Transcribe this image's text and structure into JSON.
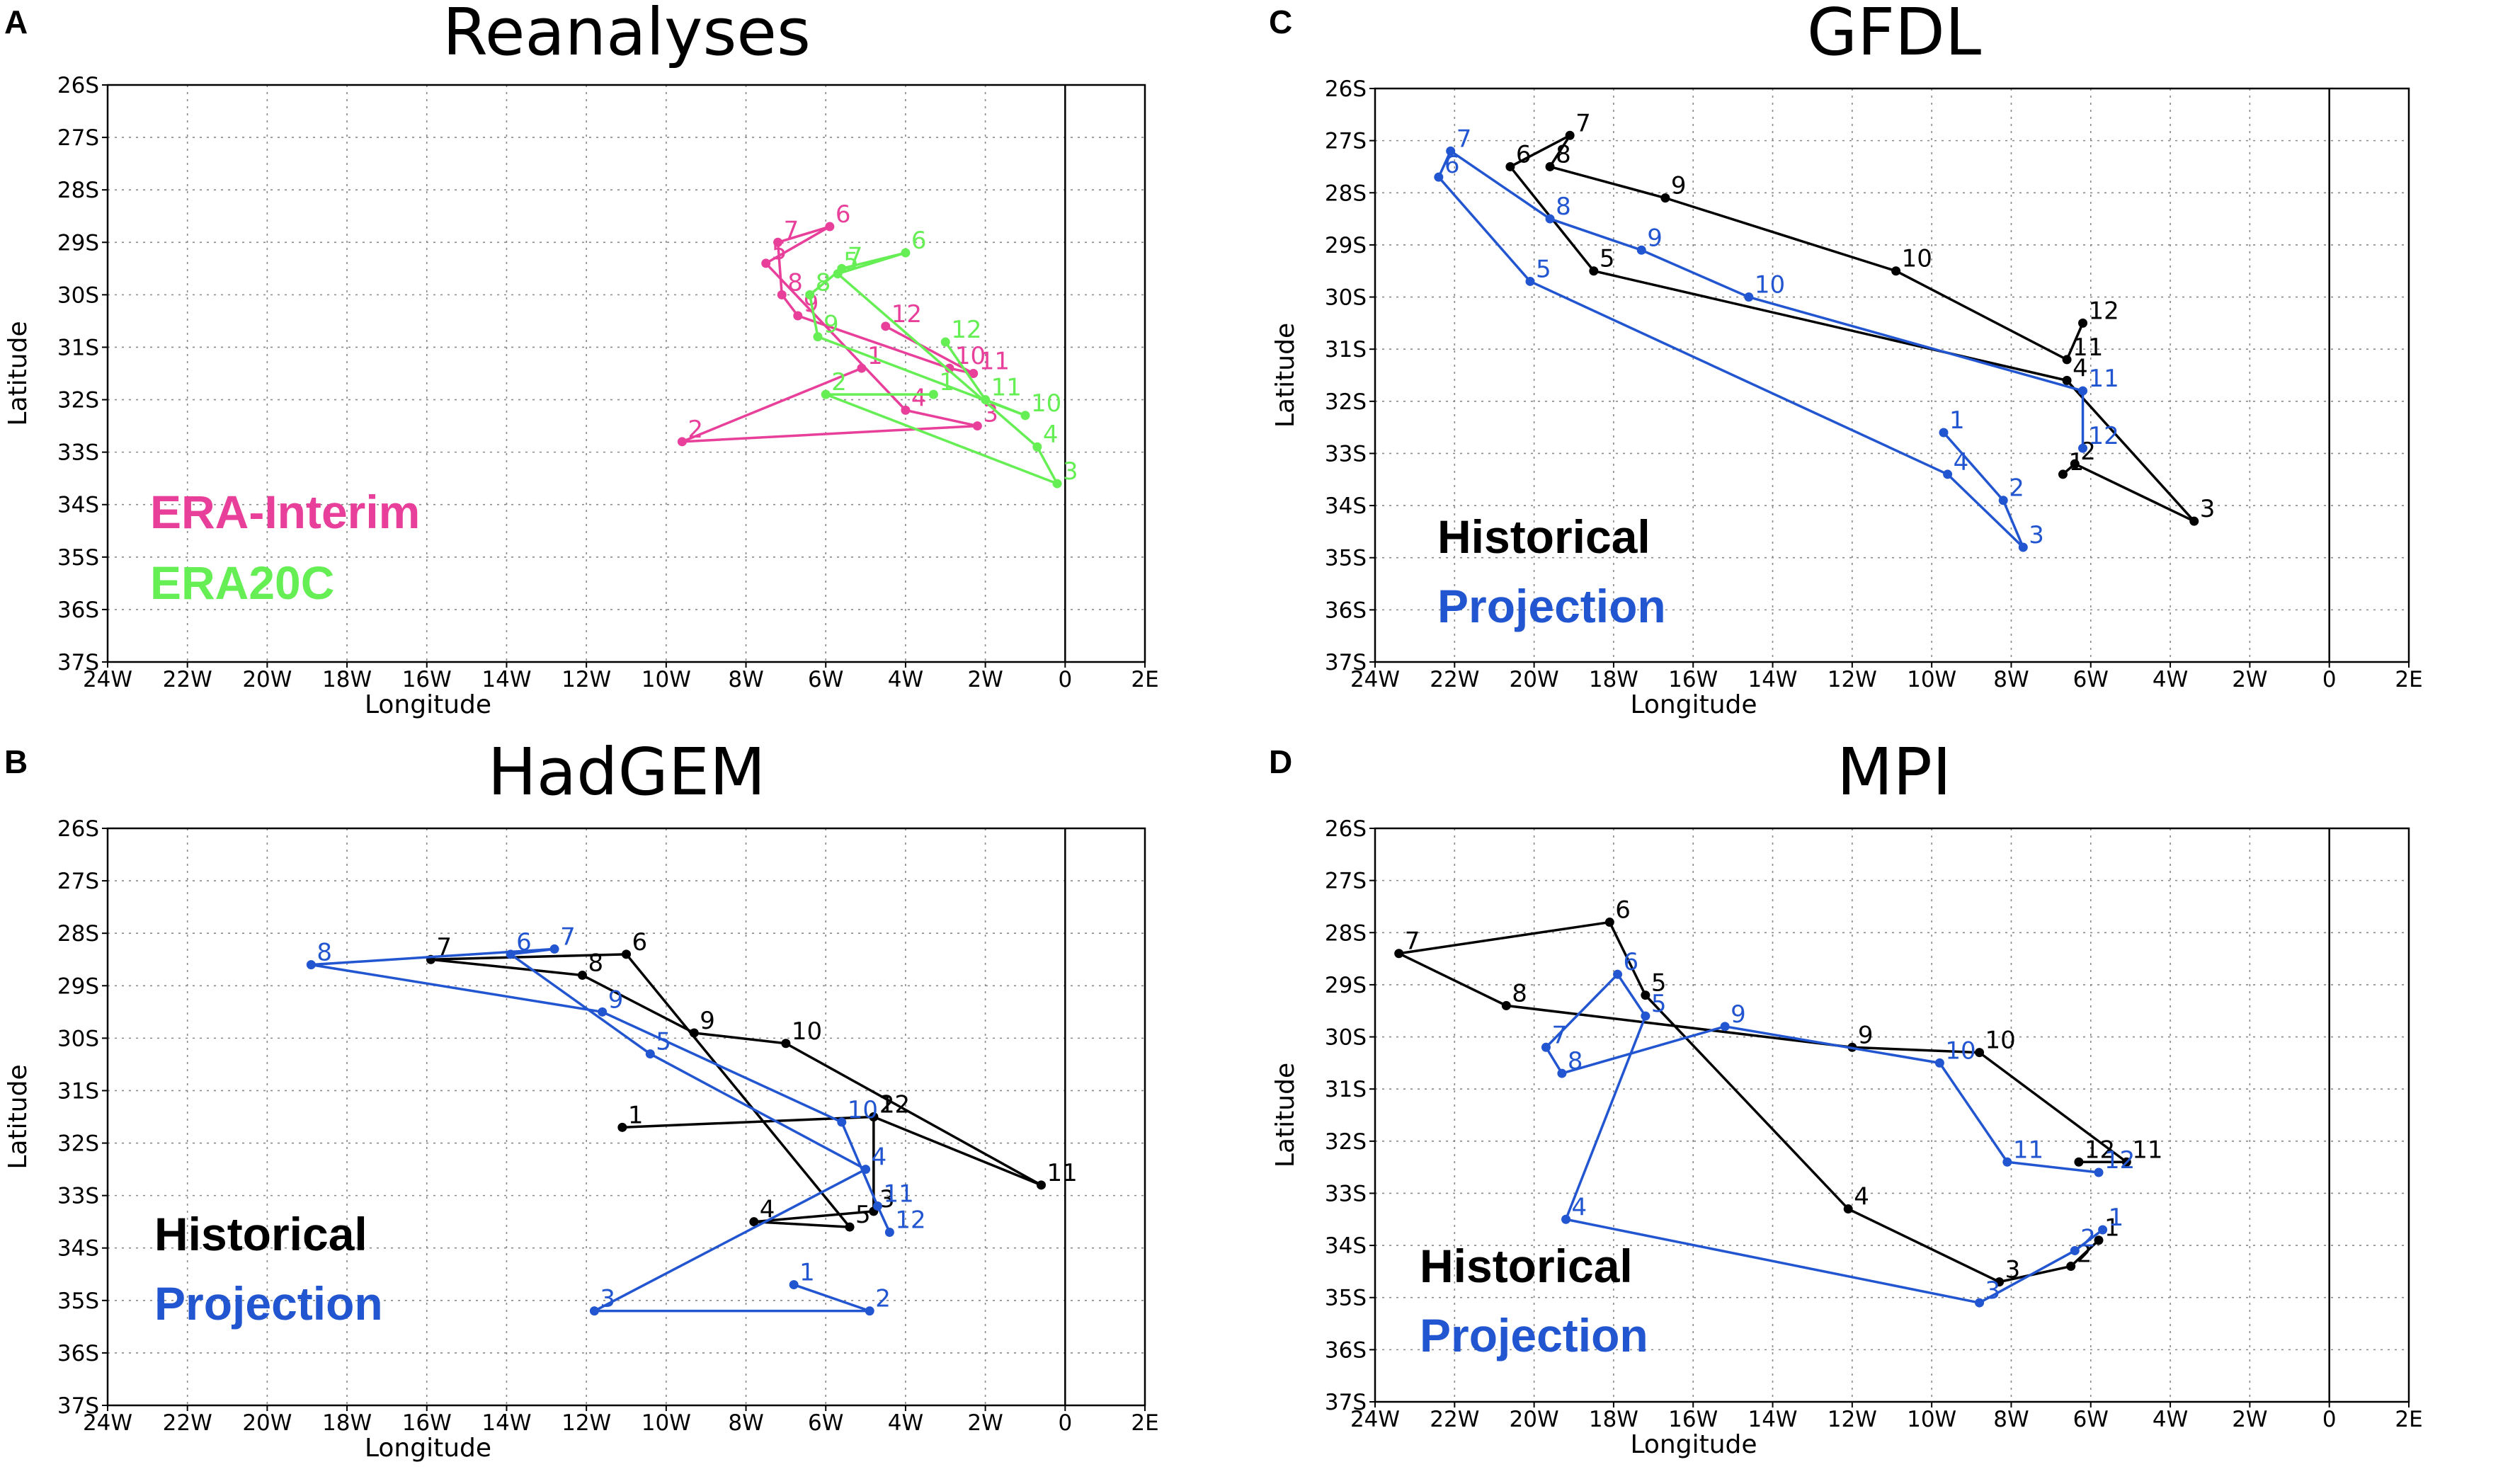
{
  "panels": {
    "A": {
      "letter": "A",
      "title": "Reanalyses",
      "xlabel": "Longitude",
      "ylabel": "Latitude",
      "legend": [
        {
          "text": "ERA-Interim",
          "color": "#e8409a"
        },
        {
          "text": "ERA20C",
          "color": "#66ee55"
        }
      ]
    },
    "B": {
      "letter": "B",
      "title": "HadGEM",
      "xlabel": "Longitude",
      "ylabel": "Latitude",
      "legend": [
        {
          "text": "Historical",
          "color": "#000000"
        },
        {
          "text": "Projection",
          "color": "#2255d0"
        }
      ]
    },
    "C": {
      "letter": "C",
      "title": "GFDL",
      "xlabel": "Longitude",
      "ylabel": "Latitude",
      "legend": [
        {
          "text": "Historical",
          "color": "#000000"
        },
        {
          "text": "Projection",
          "color": "#2255d0"
        }
      ]
    },
    "D": {
      "letter": "D",
      "title": "MPI",
      "xlabel": "Longitude",
      "ylabel": "Latitude",
      "legend": [
        {
          "text": "Historical",
          "color": "#000000"
        },
        {
          "text": "Projection",
          "color": "#2255d0"
        }
      ]
    }
  },
  "chart_data": [
    {
      "panel": "A",
      "type": "line",
      "title": "Reanalyses",
      "xlabel": "Longitude",
      "ylabel": "Latitude",
      "xlim": [
        -24,
        2
      ],
      "ylim": [
        -37,
        -26
      ],
      "xticks": [
        -24,
        -22,
        -20,
        -18,
        -16,
        -14,
        -12,
        -10,
        -8,
        -6,
        -4,
        -2,
        0,
        2
      ],
      "xticklabels": [
        "24W",
        "22W",
        "20W",
        "18W",
        "16W",
        "14W",
        "12W",
        "10W",
        "8W",
        "6W",
        "4W",
        "2W",
        "0",
        "2E"
      ],
      "yticks": [
        -26,
        -27,
        -28,
        -29,
        -30,
        -31,
        -32,
        -33,
        -34,
        -35,
        -36,
        -37
      ],
      "yticklabels": [
        "26S",
        "27S",
        "28S",
        "29S",
        "30S",
        "31S",
        "32S",
        "33S",
        "34S",
        "35S",
        "36S",
        "37S"
      ],
      "grid": true,
      "series": [
        {
          "name": "ERA-Interim",
          "color": "#e8409a",
          "labels": [
            "1",
            "2",
            "3",
            "4",
            "5",
            "6",
            "7",
            "8",
            "9",
            "10",
            "11",
            "12"
          ],
          "x": [
            -5.1,
            -9.6,
            -2.2,
            -4.0,
            -7.5,
            -5.9,
            -7.2,
            -7.1,
            -6.7,
            -2.9,
            -2.3,
            -4.5
          ],
          "y": [
            -31.4,
            -32.8,
            -32.5,
            -32.2,
            -29.4,
            -28.7,
            -29.0,
            -30.0,
            -30.4,
            -31.4,
            -31.5,
            -30.6
          ]
        },
        {
          "name": "ERA20C",
          "color": "#66ee55",
          "labels": [
            "1",
            "2",
            "3",
            "4",
            "5",
            "6",
            "7",
            "8",
            "9",
            "10",
            "11",
            "12"
          ],
          "x": [
            -3.3,
            -6.0,
            -0.2,
            -0.7,
            -5.7,
            -4.0,
            -5.6,
            -6.4,
            -6.2,
            -1.0,
            -2.0,
            -3.0
          ],
          "y": [
            -31.9,
            -31.9,
            -33.6,
            -32.9,
            -29.6,
            -29.2,
            -29.5,
            -30.0,
            -30.8,
            -32.3,
            -32.0,
            -30.9
          ]
        }
      ]
    },
    {
      "panel": "B",
      "type": "line",
      "title": "HadGEM",
      "xlabel": "Longitude",
      "ylabel": "Latitude",
      "xlim": [
        -24,
        2
      ],
      "ylim": [
        -37,
        -26
      ],
      "xticks": [
        -24,
        -22,
        -20,
        -18,
        -16,
        -14,
        -12,
        -10,
        -8,
        -6,
        -4,
        -2,
        0,
        2
      ],
      "xticklabels": [
        "24W",
        "22W",
        "20W",
        "18W",
        "16W",
        "14W",
        "12W",
        "10W",
        "8W",
        "6W",
        "4W",
        "2W",
        "0",
        "2E"
      ],
      "yticks": [
        -26,
        -27,
        -28,
        -29,
        -30,
        -31,
        -32,
        -33,
        -34,
        -35,
        -36,
        -37
      ],
      "yticklabels": [
        "26S",
        "27S",
        "28S",
        "29S",
        "30S",
        "31S",
        "32S",
        "33S",
        "34S",
        "35S",
        "36S",
        "37S"
      ],
      "grid": true,
      "series": [
        {
          "name": "Historical",
          "color": "#000000",
          "labels": [
            "1",
            "2",
            "3",
            "4",
            "5",
            "6",
            "7",
            "8",
            "9",
            "10",
            "11",
            "12"
          ],
          "x": [
            -11.1,
            -4.8,
            -4.8,
            -7.8,
            -5.4,
            -11.0,
            -15.9,
            -12.1,
            -9.3,
            -7.0,
            -0.6,
            -4.8
          ],
          "y": [
            -31.7,
            -31.5,
            -33.3,
            -33.5,
            -33.6,
            -28.4,
            -28.5,
            -28.8,
            -29.9,
            -30.1,
            -32.8,
            -31.5
          ]
        },
        {
          "name": "Projection",
          "color": "#2255d0",
          "labels": [
            "1",
            "2",
            "3",
            "4",
            "5",
            "6",
            "7",
            "8",
            "9",
            "10",
            "11",
            "12"
          ],
          "x": [
            -6.8,
            -4.9,
            -11.8,
            -5.0,
            -10.4,
            -13.9,
            -12.8,
            -18.9,
            -11.6,
            -5.6,
            -4.7,
            -4.4
          ],
          "y": [
            -34.7,
            -35.2,
            -35.2,
            -32.5,
            -30.3,
            -28.4,
            -28.3,
            -28.6,
            -29.5,
            -31.6,
            -33.2,
            -33.7
          ]
        }
      ]
    },
    {
      "panel": "C",
      "type": "line",
      "title": "GFDL",
      "xlabel": "Longitude",
      "ylabel": "Latitude",
      "xlim": [
        -24,
        2
      ],
      "ylim": [
        -37,
        -26
      ],
      "xticks": [
        -24,
        -22,
        -20,
        -18,
        -16,
        -14,
        -12,
        -10,
        -8,
        -6,
        -4,
        -2,
        0,
        2
      ],
      "xticklabels": [
        "24W",
        "22W",
        "20W",
        "18W",
        "16W",
        "14W",
        "12W",
        "10W",
        "8W",
        "6W",
        "4W",
        "2W",
        "0",
        "2E"
      ],
      "yticks": [
        -26,
        -27,
        -28,
        -29,
        -30,
        -31,
        -32,
        -33,
        -34,
        -35,
        -36,
        -37
      ],
      "yticklabels": [
        "26S",
        "27S",
        "28S",
        "29S",
        "30S",
        "31S",
        "32S",
        "33S",
        "34S",
        "35S",
        "36S",
        "37S"
      ],
      "grid": true,
      "series": [
        {
          "name": "Historical",
          "color": "#000000",
          "labels": [
            "1",
            "2",
            "3",
            "4",
            "5",
            "6",
            "7",
            "8",
            "9",
            "10",
            "11",
            "12"
          ],
          "x": [
            -6.7,
            -6.4,
            -3.4,
            -6.6,
            -18.5,
            -20.6,
            -19.1,
            -19.6,
            -16.7,
            -10.9,
            -6.6,
            -6.2
          ],
          "y": [
            -33.4,
            -33.2,
            -34.3,
            -31.6,
            -29.5,
            -27.5,
            -26.9,
            -27.5,
            -28.1,
            -29.5,
            -31.2,
            -30.5
          ]
        },
        {
          "name": "Projection",
          "color": "#2255d0",
          "labels": [
            "1",
            "2",
            "3",
            "4",
            "5",
            "6",
            "7",
            "8",
            "9",
            "10",
            "11",
            "12"
          ],
          "x": [
            -9.7,
            -8.2,
            -7.7,
            -9.6,
            -20.1,
            -22.4,
            -22.1,
            -19.6,
            -17.3,
            -14.6,
            -6.2,
            -6.2
          ],
          "y": [
            -32.6,
            -33.9,
            -34.8,
            -33.4,
            -29.7,
            -27.7,
            -27.2,
            -28.5,
            -29.1,
            -30.0,
            -31.8,
            -32.9
          ]
        }
      ]
    },
    {
      "panel": "D",
      "type": "line",
      "title": "MPI",
      "xlabel": "Longitude",
      "ylabel": "Latitude",
      "xlim": [
        -24,
        2
      ],
      "ylim": [
        -37,
        -26
      ],
      "xticks": [
        -24,
        -22,
        -20,
        -18,
        -16,
        -14,
        -12,
        -10,
        -8,
        -6,
        -4,
        -2,
        0,
        2
      ],
      "xticklabels": [
        "24W",
        "22W",
        "20W",
        "18W",
        "16W",
        "14W",
        "12W",
        "10W",
        "8W",
        "6W",
        "4W",
        "2W",
        "0",
        "2E"
      ],
      "yticks": [
        -26,
        -27,
        -28,
        -29,
        -30,
        -31,
        -32,
        -33,
        -34,
        -35,
        -36,
        -37
      ],
      "yticklabels": [
        "26S",
        "27S",
        "28S",
        "29S",
        "30S",
        "31S",
        "32S",
        "33S",
        "34S",
        "35S",
        "36S",
        "37S"
      ],
      "grid": true,
      "series": [
        {
          "name": "Historical",
          "color": "#000000",
          "labels": [
            "1",
            "2",
            "3",
            "4",
            "5",
            "6",
            "7",
            "8",
            "9",
            "10",
            "11",
            "12"
          ],
          "x": [
            -5.8,
            -6.5,
            -8.3,
            -12.1,
            -17.2,
            -18.1,
            -23.4,
            -20.7,
            -12.0,
            -8.8,
            -5.1,
            -6.3
          ],
          "y": [
            -33.9,
            -34.4,
            -34.7,
            -33.3,
            -29.2,
            -27.8,
            -28.4,
            -29.4,
            -30.2,
            -30.3,
            -32.4,
            -32.4
          ]
        },
        {
          "name": "Projection",
          "color": "#2255d0",
          "labels": [
            "1",
            "2",
            "3",
            "4",
            "5",
            "6",
            "7",
            "8",
            "9",
            "10",
            "11",
            "12"
          ],
          "x": [
            -5.7,
            -6.4,
            -8.8,
            -19.2,
            -17.2,
            -17.9,
            -19.7,
            -19.3,
            -15.2,
            -9.8,
            -8.1,
            -5.8
          ],
          "y": [
            -33.7,
            -34.1,
            -35.1,
            -33.5,
            -29.6,
            -28.8,
            -30.2,
            -30.7,
            -29.8,
            -30.5,
            -32.4,
            -32.6
          ]
        }
      ]
    }
  ]
}
